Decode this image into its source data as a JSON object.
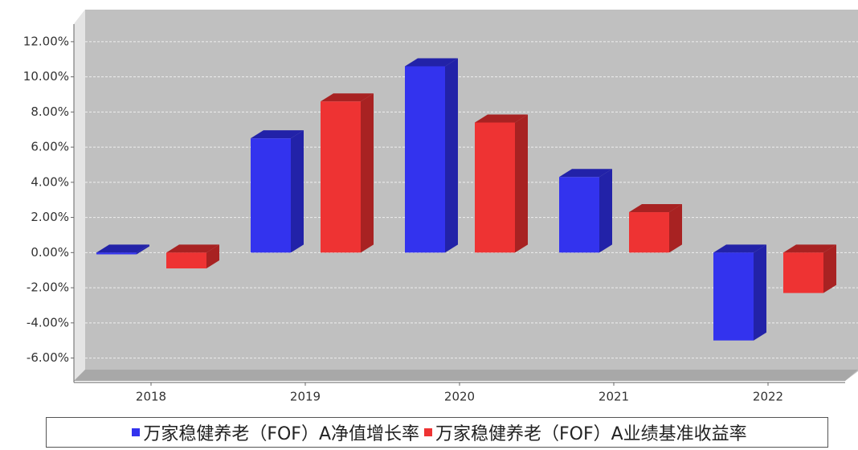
{
  "chart_data": {
    "type": "bar3d",
    "categories": [
      "2018",
      "2019",
      "2020",
      "2021",
      "2022"
    ],
    "series": [
      {
        "name": "万家稳健养老（FOF）A净值增长率",
        "color": "#3333ee",
        "side": "#2222a8",
        "values": [
          -0.1,
          6.5,
          10.6,
          4.3,
          -5.0
        ]
      },
      {
        "name": "万家稳健养老（FOF）A业绩基准收益率",
        "color": "#ee3333",
        "side": "#a82222",
        "values": [
          -0.9,
          8.6,
          7.4,
          2.3,
          -2.3
        ]
      }
    ],
    "ylim": [
      -7.3,
      13
    ],
    "yticks": [
      {
        "value": -6,
        "label": "-6.00%"
      },
      {
        "value": -4,
        "label": "-4.00%"
      },
      {
        "value": -2,
        "label": "-2.00%"
      },
      {
        "value": 0,
        "label": "0.00%"
      },
      {
        "value": 2,
        "label": "2.00%"
      },
      {
        "value": 4,
        "label": "4.00%"
      },
      {
        "value": 6,
        "label": "6.00%"
      },
      {
        "value": 8,
        "label": "8.00%"
      },
      {
        "value": 10,
        "label": "10.00%"
      },
      {
        "value": 12,
        "label": "12.00%"
      }
    ],
    "grid": true
  }
}
